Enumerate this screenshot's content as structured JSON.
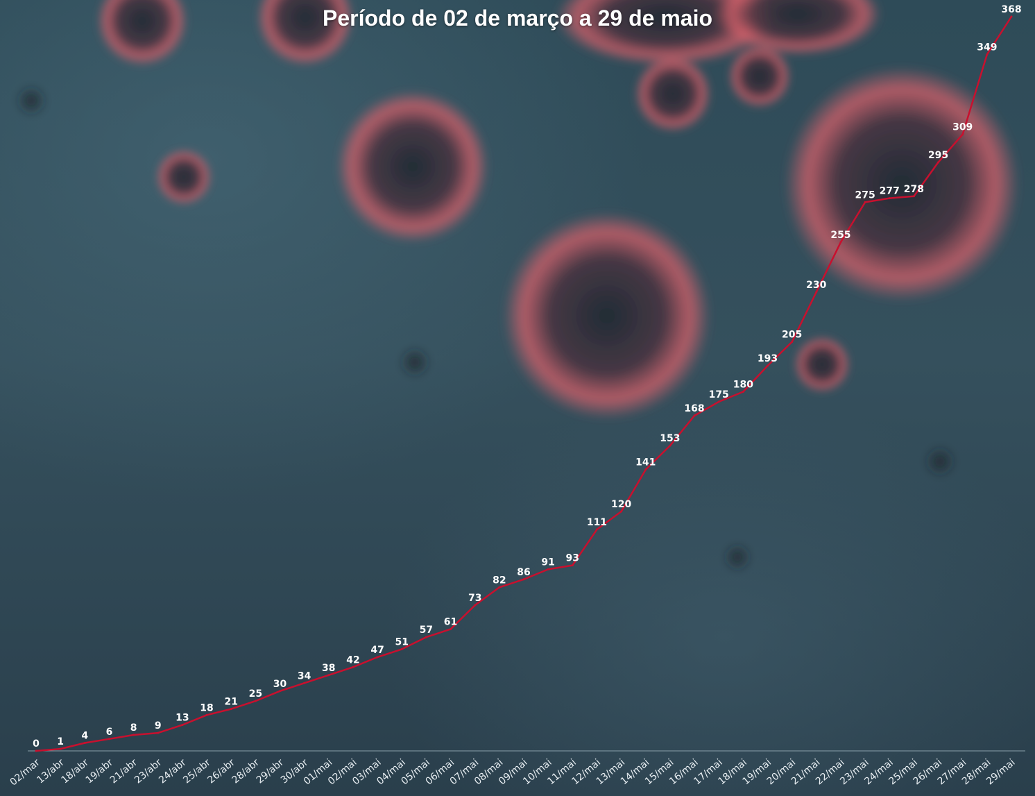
{
  "chart_data": {
    "type": "line",
    "title": "Período de 02 de março a 29 de maio",
    "xlabel": "",
    "ylabel": "",
    "categories": [
      "02/mar",
      "13/abr",
      "18/abr",
      "19/abr",
      "21/abr",
      "23/abr",
      "24/abr",
      "25/abr",
      "26/abr",
      "28/abr",
      "29/abr",
      "30/abr",
      "01/mai",
      "02/mai",
      "03/mai",
      "04/mai",
      "05/mai",
      "06/mai",
      "07/mai",
      "08/mai",
      "09/mai",
      "10/mai",
      "11/mai",
      "12/mai",
      "13/mai",
      "14/mai",
      "15/mai",
      "16/mai",
      "17/mai",
      "18/mai",
      "19/mai",
      "20/mai",
      "21/mai",
      "22/mai",
      "23/mai",
      "24/mai",
      "25/mai",
      "26/mai",
      "27/mai",
      "28/mai",
      "29/mai"
    ],
    "series": [
      {
        "values": [
          0,
          1,
          4,
          6,
          8,
          9,
          13,
          18,
          21,
          25,
          30,
          34,
          38,
          42,
          47,
          51,
          57,
          61,
          73,
          82,
          86,
          91,
          93,
          111,
          120,
          141,
          153,
          168,
          175,
          180,
          193,
          205,
          230,
          255,
          275,
          277,
          278,
          295,
          309,
          349,
          368
        ]
      }
    ],
    "ylim": [
      0,
      368
    ],
    "grid": false,
    "legend": "none",
    "data_labels": true,
    "line_color": "#c8102e"
  },
  "colors": {
    "line": "#c8102e",
    "text": "#ffffff",
    "virus": "#d9606a"
  }
}
